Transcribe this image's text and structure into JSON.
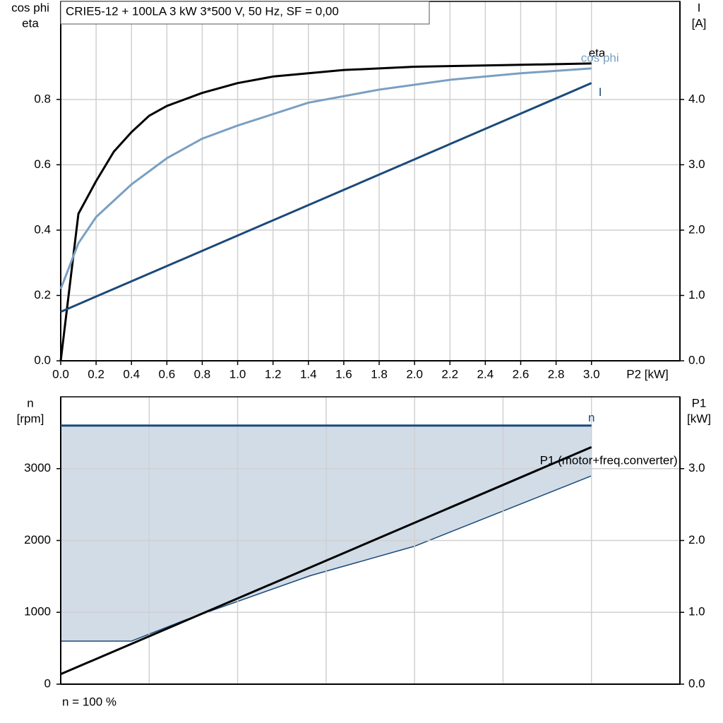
{
  "chart_data": [
    {
      "type": "line",
      "title": "CRIE5-12 + 100LA   3 kW   3*500 V, 50 Hz, SF = 0,00",
      "xlabel": "P2 [kW]",
      "ylabel": [
        "cos phi",
        "eta"
      ],
      "y2label": [
        "I",
        "[A]"
      ],
      "xlim": [
        0,
        3.5
      ],
      "ylim": [
        0,
        1.1
      ],
      "y2lim": [
        0,
        5.5
      ],
      "xticks": [
        {
          "value": 0,
          "label": "0.0"
        },
        0.2,
        0.4,
        0.6,
        0.8,
        {
          "value": 1,
          "label": "1.0"
        },
        1.2,
        1.4,
        1.6,
        1.8,
        {
          "value": 2,
          "label": "2.0"
        },
        2.2,
        2.4,
        2.6,
        2.8,
        {
          "value": 3,
          "label": "3.0"
        }
      ],
      "yticks": [
        {
          "value": 0,
          "label": "0.0"
        },
        0.2,
        0.4,
        0.6,
        0.8
      ],
      "y2ticks": [
        {
          "value": 0,
          "label": "0.0"
        },
        {
          "value": 1,
          "label": "1.0"
        },
        {
          "value": 2,
          "label": "2.0"
        },
        {
          "value": 3,
          "label": "3.0"
        },
        {
          "value": 4,
          "label": "4.0"
        }
      ],
      "grid": true,
      "show_xtick_labels": true,
      "series": [
        {
          "name": "eta",
          "color": "#000000",
          "axis": "y",
          "x": [
            0,
            0.1,
            0.2,
            0.3,
            0.4,
            0.5,
            0.6,
            0.8,
            1.0,
            1.2,
            1.6,
            2.0,
            2.5,
            3.0
          ],
          "values": [
            0,
            0.45,
            0.55,
            0.64,
            0.7,
            0.75,
            0.78,
            0.82,
            0.85,
            0.87,
            0.89,
            0.9,
            0.905,
            0.91
          ]
        },
        {
          "name": "cos phi",
          "color": "#7a9fc2",
          "axis": "y",
          "x": [
            0,
            0.05,
            0.1,
            0.2,
            0.4,
            0.6,
            0.8,
            1.0,
            1.4,
            1.8,
            2.2,
            2.6,
            3.0
          ],
          "values": [
            0.22,
            0.29,
            0.36,
            0.44,
            0.54,
            0.62,
            0.68,
            0.72,
            0.79,
            0.83,
            0.86,
            0.88,
            0.895
          ]
        },
        {
          "name": "I",
          "color": "#1a4a7a",
          "axis": "y2",
          "x": [
            0,
            3.0
          ],
          "values": [
            0.75,
            4.25
          ]
        }
      ]
    },
    {
      "type": "line",
      "ylabel": [
        "n",
        "[rpm]"
      ],
      "y2label": [
        "P1",
        "[kW]"
      ],
      "xlim": [
        0,
        3.5
      ],
      "ylim": [
        0,
        4000
      ],
      "y2lim": [
        0,
        4
      ],
      "xticks": [
        0.5,
        1,
        1.5,
        2,
        2.5,
        3
      ],
      "show_xtick_labels": false,
      "yticks": [
        0,
        1000,
        2000,
        3000
      ],
      "y2ticks": [
        {
          "value": 0,
          "label": "0.0"
        },
        {
          "value": 1,
          "label": "1.0"
        },
        {
          "value": 2,
          "label": "2.0"
        },
        {
          "value": 3,
          "label": "3.0"
        }
      ],
      "grid": true,
      "band": {
        "color": "#d1dce7",
        "line_color": "#1a4a7a",
        "x": [
          0,
          0.4,
          0.7,
          1.41,
          2.0,
          3.0
        ],
        "lower": [
          600,
          600,
          890,
          1510,
          1920,
          2900
        ]
      },
      "series": [
        {
          "name": "n",
          "color": "#1a4a7a",
          "axis": "y",
          "x": [
            0,
            3.0
          ],
          "values": [
            3600,
            3600
          ]
        },
        {
          "name": "P1 (motor+freq.converter)",
          "color": "#000000",
          "axis": "y2",
          "x": [
            0,
            3.0
          ],
          "values": [
            0.14,
            3.3
          ]
        }
      ],
      "note": "n = 100 %"
    }
  ]
}
